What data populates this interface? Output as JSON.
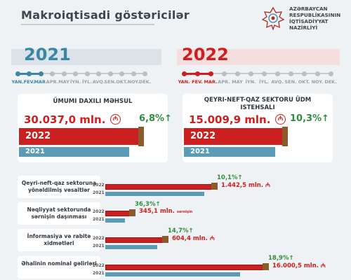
{
  "title": "Makroiqtisadi göstəricilər",
  "ministry": [
    "AZƏRBAYCAN",
    "RESPUBLİKASININ",
    "İQTİSADİYYAT",
    "NAZİRLİYİ"
  ],
  "colors": {
    "y2021": "#3b86a3",
    "y2022": "#cc1f1f",
    "growth": "#2f8f3f"
  },
  "timeline": {
    "year_2021": "2021",
    "year_2022": "2022",
    "months": [
      "YAN.",
      "FEV.",
      "MAR.",
      "APR.",
      "MAY",
      "İYN.",
      "İYL.",
      "AVQ.",
      "SEN.",
      "OKT.",
      "NOY.",
      "DEK."
    ],
    "active_months": 3
  },
  "gdp": {
    "title": "Ümumi daxili məhsul",
    "value": "30.037,0 mln.",
    "growth": "6,8%",
    "label_2022": "2022",
    "label_2021": "2021"
  },
  "non_oil_gas": {
    "title": "Qeyri-neft-qaz sektoru ÜDM istehsalı",
    "value": "15.009,9 mln.",
    "growth": "10,3%",
    "label_2022": "2022",
    "label_2021": "2021"
  },
  "chart_data": {
    "type": "bar",
    "categories": [
      "Qeyri-neft-qaz sektoruna yönəldilmiş vəsaitlər",
      "Nəqliyyat sektorunda sərnişin daşınması",
      "İnformasiya və rabitə xidmətləri",
      "Əhalinin nominal gəlirləri"
    ],
    "series": [
      {
        "name": "2022",
        "values": [
          1442.5,
          345.1,
          604.4,
          16000.5
        ]
      },
      {
        "name": "2021",
        "values": [
          1311.4,
          253.2,
          527.0,
          13457.1
        ]
      }
    ],
    "value_labels": [
      "1.442,5 mln.",
      "345,1 mln.",
      "604,4 mln.",
      "16.000,5 mln."
    ],
    "units": [
      "",
      "sərnişin",
      "",
      ""
    ],
    "growth_labels": [
      "10,1%",
      "36,3%",
      "14,7%",
      "18,9%"
    ],
    "legend": {
      "y2022": "2022",
      "y2021": "2021"
    }
  }
}
